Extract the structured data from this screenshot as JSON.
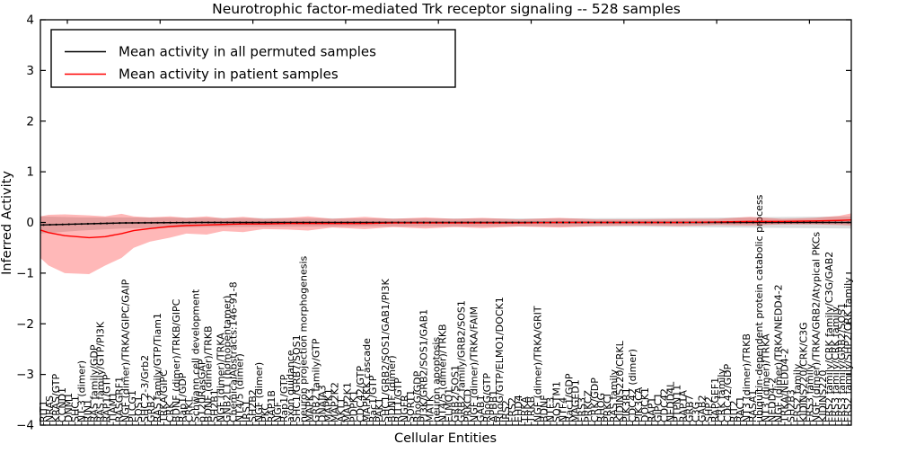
{
  "chart_data": {
    "type": "line",
    "title": "Neurotrophic factor-mediated Trk receptor signaling -- 528 samples",
    "xlabel": "Cellular Entities",
    "ylabel": "Inferred Activity",
    "ylim": [
      -4,
      4
    ],
    "yticks": [
      -4,
      -3,
      -2,
      -1,
      0,
      1,
      2,
      3,
      4
    ],
    "grid": false,
    "legend_position": "upper left",
    "categories": [
      "RIT1",
      "NRAS",
      "KRAS/GTP",
      "CCND1",
      "DNM1",
      "SHC1",
      "NT-3 (dimer)",
      "RIN1",
      "RAS family/GDP",
      "RAS family/GTP/PI3K",
      "RAP1/GTP",
      "TIAM1",
      "RASGRF1",
      "NGF (dimer)/TRKA/GIPC/GAIP",
      "PLCG1",
      "SOS1",
      "SHC 2-3/Grb2",
      "GRB2",
      "RAS family/GTP/Tiam1",
      "TRKA/GIPC",
      "CRK",
      "BDNF (dimer)/TRKB/GIPC",
      "Rap1/GDP",
      "CRKL",
      "Schwann cell development",
      "p120RasGAP",
      "BDNF (dimer)/TRKB",
      "SH2B1",
      "NGF (dimer)/TRKA",
      "GNB2L1 (homopentamer)",
      "ChemicalAbstracts:146-91-8",
      "NT4/5 (dimer)",
      "IRS1",
      "SH2B2",
      "NGF (dimer)",
      "PKC",
      "RAP1B",
      "NGF",
      "Rap1/GTP",
      "axon guidance",
      "SHC1/GRB7/SOS1",
      "neuron projection morphogenesis",
      "MAPK3",
      "GRB2 family/GTP",
      "DNAJA3",
      "MAPK1",
      "MAP2K2",
      "AKT1",
      "MAP2K1",
      "PDPK1",
      "CDC42/GTP",
      "MAPKKK cascade",
      "Rac1/GTP",
      "PAK1",
      "SHC1/GRB2/SOS1/GAB1/PI3K",
      "BDNF (dimer)",
      "RIT1/GTP",
      "NGFR",
      "SORT1",
      "RhoG/GDP",
      "PI3K/GRB2/SOS1/GAB1",
      "MATK",
      "neuron apoptosis",
      "NT4/5 (dimer)/TRKB",
      "ELMO1",
      "GRB2/SOS1",
      "GRB2 family/GRB2/SOS1",
      "PRKCD",
      "NGF (dimer)/TRKA/FAIM",
      "GAB1",
      "RhoG/GTP",
      "APBB1",
      "RhoG/GTP/ELMO1/DOCK1",
      "IRS2",
      "FRS2",
      "EHD4",
      "TRKA",
      "TRKB",
      "NGF (dimer)/TRKA/GRIT",
      "BDNF",
      "NTF3",
      "SQSTM1",
      "NTF4",
      "Rac1/GDP",
      "MAGED1",
      "FRS3",
      "PRKCZ",
      "CRK/GDP",
      "RHOG",
      "PRKCI",
      "RAS family",
      "KIDINS220/CRKL",
      "PIK3R1",
      "CDC42 (dimer)",
      "PIK3CA",
      "DOCK1",
      "RAP1",
      "GIPC1",
      "CDC42",
      "NEDD4L",
      "PTPN11",
      "RAP1A",
      "GRB7",
      "C3G",
      "GAB2",
      "SHP2",
      "RAPGEF1",
      "CRK family",
      "CDC42/GDP",
      "RIT2",
      "RAC1",
      "NT3 (dimer)/TRKB",
      "RASA1",
      "ubiquitin-dependent protein catabolic process",
      "NT3 (dimer)/TRKA",
      "NEDD4-2",
      "NGF (dimer)/TRKA/NEDD4-2",
      "TRKA/NEDD4-2",
      "SH2B3",
      "FRS2 family",
      "KIDINS220/CRK/C3G",
      "FRS3 family",
      "NGF (dimer)/TRKA/GRB2/Atypical PKCs",
      "KIDINS220",
      "FRS2 family/CRK family/C3G/GAB2",
      "FRS3 family/CRK family",
      "FRS3 family/GRB2/SOS1",
      "FRS2 family/SHP2/CRK family"
    ],
    "series": [
      {
        "name": "Mean activity in all permuted samples",
        "color": "#000000",
        "band_color": "rgba(0,0,0,0.14)",
        "band_name": "permuted-std-band",
        "points": [
          [
            0.0,
            -0.05,
            0.12,
            -0.22
          ],
          [
            0.05,
            -0.03,
            0.1,
            -0.16
          ],
          [
            0.1,
            -0.01,
            0.1,
            -0.12
          ],
          [
            0.2,
            0.0,
            0.09,
            -0.09
          ],
          [
            0.4,
            0.0,
            0.08,
            -0.08
          ],
          [
            0.6,
            0.0,
            0.08,
            -0.08
          ],
          [
            0.8,
            0.0,
            0.09,
            -0.09
          ],
          [
            1.0,
            0.0,
            0.12,
            -0.12
          ]
        ]
      },
      {
        "name": "Mean activity in patient samples",
        "color": "#ff0000",
        "band_color": "rgba(255,0,0,0.28)",
        "band_name": "patient-std-band",
        "points": [
          [
            0.0,
            -0.15,
            0.12,
            -0.7
          ],
          [
            0.01,
            -0.2,
            0.15,
            -0.85
          ],
          [
            0.03,
            -0.26,
            0.16,
            -1.0
          ],
          [
            0.06,
            -0.3,
            0.14,
            -1.02
          ],
          [
            0.08,
            -0.28,
            0.12,
            -0.85
          ],
          [
            0.1,
            -0.22,
            0.17,
            -0.7
          ],
          [
            0.115,
            -0.16,
            0.12,
            -0.5
          ],
          [
            0.135,
            -0.12,
            0.1,
            -0.38
          ],
          [
            0.16,
            -0.08,
            0.12,
            -0.3
          ],
          [
            0.18,
            -0.06,
            0.09,
            -0.22
          ],
          [
            0.205,
            -0.05,
            0.12,
            -0.24
          ],
          [
            0.225,
            -0.04,
            0.08,
            -0.17
          ],
          [
            0.25,
            -0.03,
            0.11,
            -0.19
          ],
          [
            0.275,
            -0.03,
            0.07,
            -0.13
          ],
          [
            0.305,
            -0.02,
            0.09,
            -0.14
          ],
          [
            0.33,
            -0.02,
            0.12,
            -0.16
          ],
          [
            0.36,
            -0.02,
            0.07,
            -0.1
          ],
          [
            0.4,
            -0.02,
            0.11,
            -0.13
          ],
          [
            0.435,
            -0.01,
            0.07,
            -0.09
          ],
          [
            0.475,
            -0.01,
            0.1,
            -0.12
          ],
          [
            0.51,
            -0.01,
            0.07,
            -0.09
          ],
          [
            0.545,
            -0.01,
            0.09,
            -0.11
          ],
          [
            0.59,
            -0.01,
            0.06,
            -0.08
          ],
          [
            0.64,
            0.0,
            0.09,
            -0.1
          ],
          [
            0.685,
            0.0,
            0.06,
            -0.07
          ],
          [
            0.735,
            0.0,
            0.06,
            -0.06
          ],
          [
            0.79,
            0.0,
            0.07,
            -0.07
          ],
          [
            0.835,
            0.01,
            0.07,
            -0.05
          ],
          [
            0.875,
            0.02,
            0.11,
            -0.06
          ],
          [
            0.915,
            0.02,
            0.07,
            -0.04
          ],
          [
            0.955,
            0.03,
            0.09,
            -0.04
          ],
          [
            0.985,
            0.04,
            0.13,
            -0.05
          ],
          [
            1.0,
            0.05,
            0.18,
            -0.06
          ]
        ]
      }
    ]
  }
}
